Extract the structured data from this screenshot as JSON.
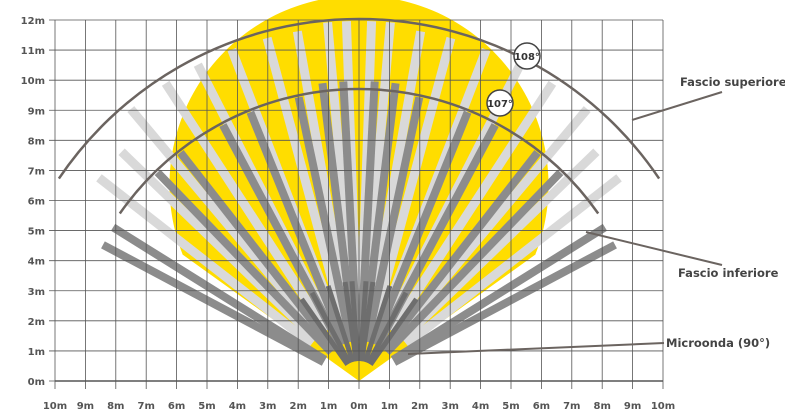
{
  "diagram": {
    "y_axis_labels": [
      "0m",
      "1m",
      "2m",
      "3m",
      "4m",
      "5m",
      "6m",
      "7m",
      "8m",
      "9m",
      "10m",
      "11m",
      "12m"
    ],
    "x_axis_labels": [
      "10m",
      "9m",
      "8m",
      "7m",
      "6m",
      "5m",
      "4m",
      "3m",
      "2m",
      "1m",
      "0m",
      "1m",
      "2m",
      "3m",
      "4m",
      "5m",
      "6m",
      "7m",
      "8m",
      "9m",
      "10m"
    ],
    "callouts": {
      "upper_beam": "Fascio superiore",
      "lower_beam": "Fascio inferiore",
      "microwave": "Microonda (90°)"
    },
    "angles": {
      "outer": "108°",
      "inner": "107°"
    },
    "colors": {
      "microwave_zone": "#FFDD00",
      "upper_beam": "#D9D9D9",
      "lower_beam": "#8C8C8C",
      "short_beam": "#6E6E6E",
      "arc": "#6B6460",
      "grid": "#555555"
    },
    "ranges": {
      "x_min": -10,
      "x_max": 10,
      "y_min": 0,
      "y_max": 12,
      "upper_beam_range": 12,
      "lower_beam_range": 10,
      "microwave_range": 11,
      "microwave_angle_deg": 90
    }
  }
}
